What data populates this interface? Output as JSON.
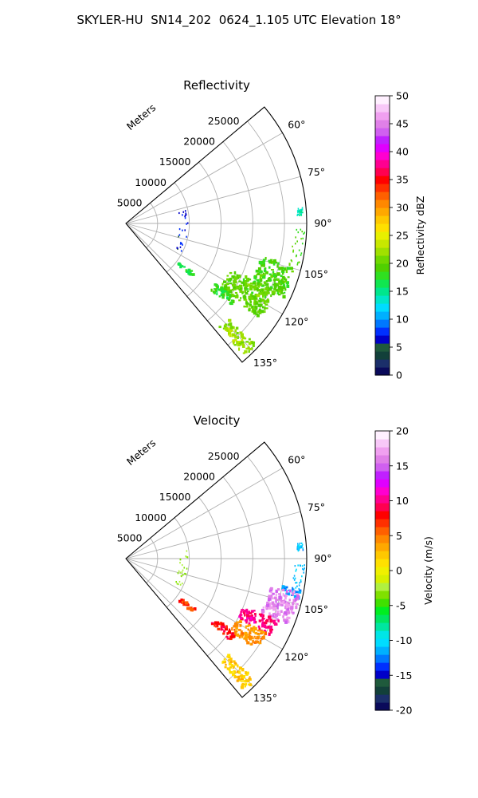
{
  "figure": {
    "title": "SKYLER-HU  SN14_202  0624_1.105 UTC Elevation 18°"
  },
  "chart_data": [
    {
      "type": "polar",
      "title": "Reflectivity",
      "radial_axis": {
        "label": "Meters",
        "range": [
          0,
          28500
        ],
        "ticks": [
          5000,
          10000,
          15000,
          20000,
          25000
        ]
      },
      "angular_axis": {
        "range_deg": [
          50,
          140
        ],
        "ticks_deg": [
          60,
          75,
          90,
          105,
          120,
          135
        ],
        "tick_labels": [
          "60°",
          "75°",
          "90°",
          "105°",
          "120°",
          "135°"
        ]
      },
      "grid": true,
      "colorbar": {
        "label": "Reflectivity dBZ",
        "range": [
          0,
          50
        ],
        "ticks": [
          0,
          5,
          10,
          15,
          20,
          25,
          30,
          35,
          40,
          45,
          50
        ]
      },
      "echo_regions": [
        {
          "az": [
            85.0,
            87.5
          ],
          "r": [
            27000,
            28000
          ],
          "value": 14
        },
        {
          "az": [
            92.0,
            104.0
          ],
          "r": [
            26500,
            28200
          ],
          "value": 19
        },
        {
          "az": [
            104.0,
            115.0
          ],
          "r": [
            22000,
            27500
          ],
          "value": 19
        },
        {
          "az": [
            114.0,
            125.0
          ],
          "r": [
            18000,
            26000
          ],
          "value": 20
        },
        {
          "az": [
            124.0,
            128.0
          ],
          "r": [
            17000,
            21000
          ],
          "value": 18
        },
        {
          "az": [
            133.0,
            138.0
          ],
          "r": [
            22000,
            28000
          ],
          "value": 22
        },
        {
          "az": [
            126.0,
            129.0
          ],
          "r": [
            10500,
            13500
          ],
          "value": 17
        },
        {
          "az": [
            78.0,
            118.0
          ],
          "r": [
            8500,
            9800
          ],
          "value": 7
        }
      ]
    },
    {
      "type": "polar",
      "title": "Velocity",
      "radial_axis": {
        "label": "Meters",
        "range": [
          0,
          28500
        ],
        "ticks": [
          5000,
          10000,
          15000,
          20000,
          25000
        ]
      },
      "angular_axis": {
        "range_deg": [
          50,
          140
        ],
        "ticks_deg": [
          60,
          75,
          90,
          105,
          120,
          135
        ],
        "tick_labels": [
          "60°",
          "75°",
          "90°",
          "105°",
          "120°",
          "135°"
        ]
      },
      "grid": true,
      "colorbar": {
        "label": "Velocity (m/s)",
        "range": [
          -20,
          20
        ],
        "ticks": [
          -20,
          -15,
          -10,
          -5,
          0,
          5,
          10,
          15,
          20
        ]
      },
      "echo_regions": [
        {
          "az": [
            85.0,
            87.5
          ],
          "r": [
            27000,
            28000
          ],
          "value": -11
        },
        {
          "az": [
            92.0,
            100.0
          ],
          "r": [
            26500,
            28200
          ],
          "value": -11
        },
        {
          "az": [
            100.0,
            103.0
          ],
          "r": [
            25000,
            28000
          ],
          "value": -12
        },
        {
          "az": [
            101.0,
            112.0
          ],
          "r": [
            23000,
            28000
          ],
          "value": 16
        },
        {
          "az": [
            112.0,
            118.0
          ],
          "r": [
            20000,
            26000
          ],
          "value": 10
        },
        {
          "az": [
            118.0,
            125.0
          ],
          "r": [
            20000,
            25000
          ],
          "value": 4
        },
        {
          "az": [
            124.0,
            128.0
          ],
          "r": [
            17000,
            21000
          ],
          "value": 8
        },
        {
          "az": [
            133.0,
            138.0
          ],
          "r": [
            22000,
            28000
          ],
          "value": 2
        },
        {
          "az": [
            126.0,
            129.0
          ],
          "r": [
            10500,
            13500
          ],
          "value": 7
        },
        {
          "az": [
            78.0,
            118.0
          ],
          "r": [
            8500,
            9800
          ],
          "value": -3
        }
      ]
    }
  ],
  "colors": {
    "grid": "#b0b0b0",
    "reflectivity_scale": [
      "#0a0a5a",
      "#1b2f6a",
      "#12403a",
      "#1f5a3c",
      "#0000c8",
      "#0030ff",
      "#0078ff",
      "#00b0ff",
      "#00dcff",
      "#00e6c8",
      "#00e68c",
      "#10e650",
      "#30e020",
      "#50d000",
      "#70d800",
      "#a0e000",
      "#c8e800",
      "#e8f000",
      "#ffe000",
      "#ffc800",
      "#ffa800",
      "#ff8800",
      "#ff6000",
      "#ff3000",
      "#ff0000",
      "#ff0050",
      "#ff0090",
      "#ff00d0",
      "#e000ff",
      "#c020ff",
      "#d060f0",
      "#e080e8",
      "#f0a0f0",
      "#f8c8f8",
      "#fff0ff"
    ],
    "velocity_scale": [
      "#0a0a5a",
      "#1b2f6a",
      "#12403a",
      "#1f5a3c",
      "#0000c8",
      "#0030ff",
      "#0078ff",
      "#00b0ff",
      "#00dcff",
      "#00e6e6",
      "#00e6a0",
      "#00e660",
      "#00ee20",
      "#40e000",
      "#80e000",
      "#b0f040",
      "#d8f000",
      "#f0f000",
      "#ffe000",
      "#ffc800",
      "#ffa800",
      "#ff8800",
      "#ff6000",
      "#ff3000",
      "#ff0000",
      "#ff0050",
      "#ff0090",
      "#ff00d0",
      "#e000ff",
      "#c020ff",
      "#d060f0",
      "#e080e8",
      "#f0a0f0",
      "#f8c8f8",
      "#fff0ff"
    ]
  }
}
